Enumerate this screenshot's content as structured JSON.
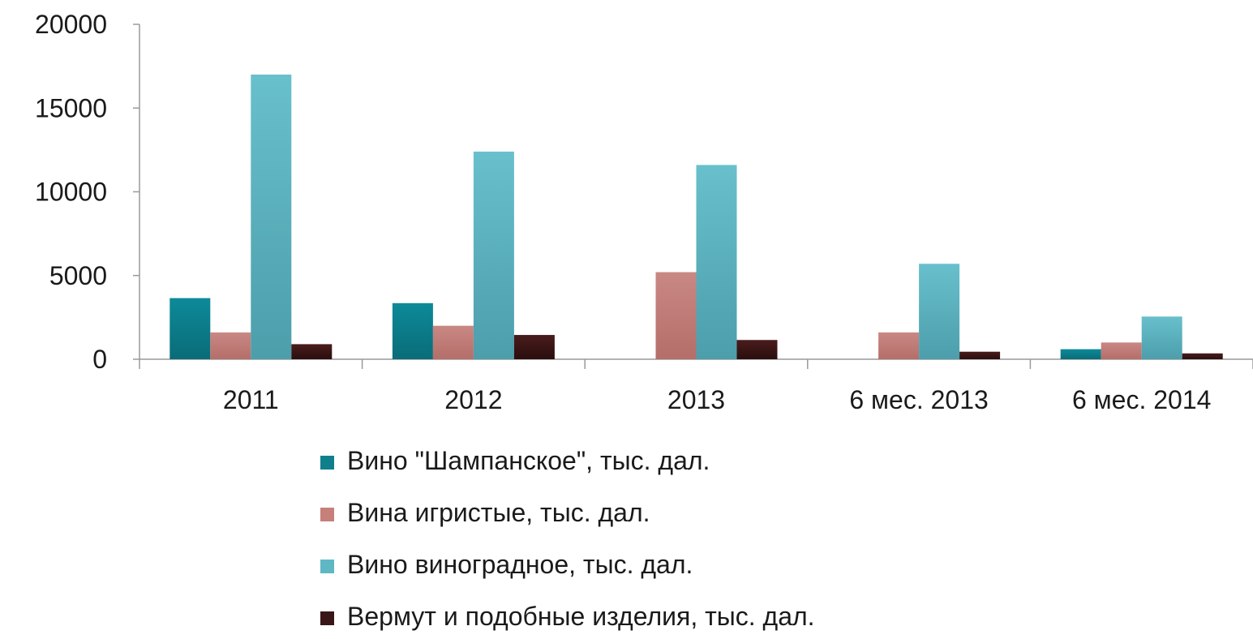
{
  "chart_data": {
    "type": "bar",
    "categories": [
      "2011",
      "2012",
      "2013",
      "6 мес. 2013",
      "6 мес. 2014"
    ],
    "series": [
      {
        "name": "Вино \"Шампанское\", тыс. дал.",
        "color": "#0f7f8c",
        "values": [
          3650,
          3350,
          0,
          0,
          600
        ]
      },
      {
        "name": "Вина игристые, тыс. дал.",
        "color": "#c77f7a",
        "values": [
          1600,
          2000,
          5200,
          1600,
          1000
        ]
      },
      {
        "name": "Вино виноградное, тыс. дал.",
        "color": "#5fb7c4",
        "values": [
          17000,
          12400,
          11600,
          5700,
          2550
        ]
      },
      {
        "name": "Вермут и подобные изделия, тыс. дал.",
        "color": "#3a1616",
        "values": [
          900,
          1450,
          1150,
          450,
          350
        ]
      }
    ],
    "yticks": [
      "0",
      "5000",
      "10000",
      "15000",
      "20000"
    ],
    "ylim": [
      0,
      20000
    ],
    "legend_position": "bottom",
    "grid": false
  }
}
